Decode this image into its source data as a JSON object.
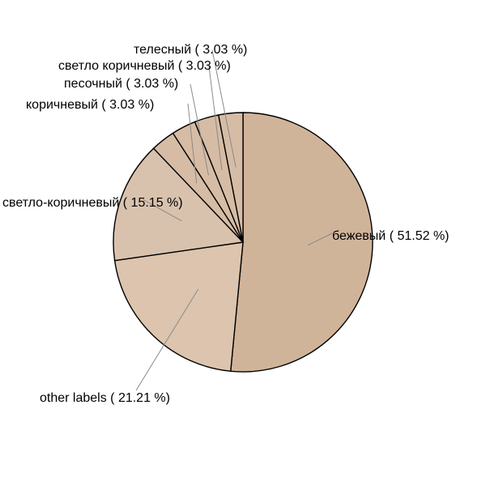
{
  "chart_data": {
    "type": "pie",
    "title": "",
    "slices": [
      {
        "label": "бежевый ( 51.52 %)",
        "value": 51.52,
        "color": "#d0b49a"
      },
      {
        "label": "other labels ( 21.21 %)",
        "value": 21.21,
        "color": "#dcc4ae"
      },
      {
        "label": "светло-коричневый ( 15.15 %)",
        "value": 15.15,
        "color": "#d9c2ad"
      },
      {
        "label": "коричневый ( 3.03 %)",
        "value": 3.03,
        "color": "#d6bca5"
      },
      {
        "label": "песочный ( 3.03 %)",
        "value": 3.03,
        "color": "#d6bca5"
      },
      {
        "label": "светло коричневый ( 3.03 %)",
        "value": 3.03,
        "color": "#d6bca5"
      },
      {
        "label": "телесный ( 3.03 %)",
        "value": 3.03,
        "color": "#d6bca5"
      }
    ],
    "legend": "none"
  }
}
